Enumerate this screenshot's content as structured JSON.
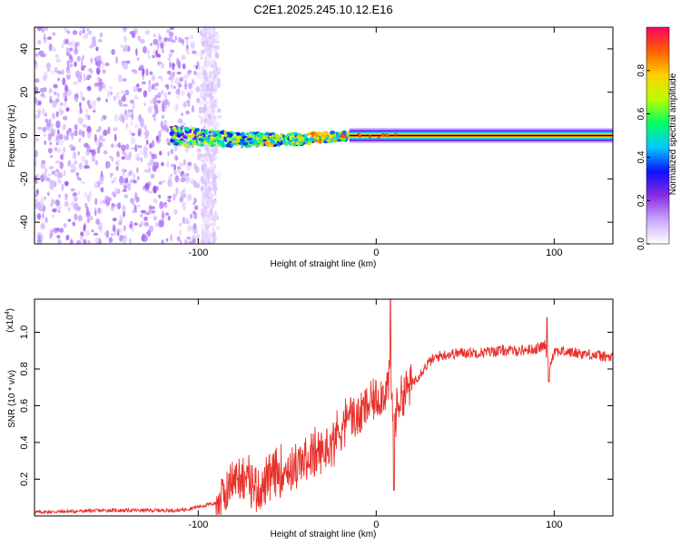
{
  "figure_title": "C2E1.2025.245.10.12.E16",
  "chart_data": [
    {
      "type": "heatmap",
      "title": "C2E1.2025.245.10.12.E16",
      "xlabel": "Height of straight line (km)",
      "ylabel": "Frequency (Hz)",
      "xlim": [
        -192,
        133
      ],
      "ylim": [
        -50,
        50
      ],
      "x_ticks": [
        -100,
        0,
        100
      ],
      "x_tick_labels": [
        "-100",
        "0",
        "100"
      ],
      "y_ticks": [
        -40,
        -20,
        0,
        20,
        40
      ],
      "y_tick_labels": [
        "-40",
        "-20",
        "0",
        "20",
        "40"
      ],
      "colorbar": {
        "label": "Normalized spectral amplitude",
        "range": [
          0,
          1
        ],
        "ticks": [
          0,
          0.2,
          0.4,
          0.6,
          0.8
        ],
        "tick_labels": [
          "0.0",
          "0.2",
          "0.4",
          "0.6",
          "0.8"
        ],
        "colormap": [
          "#ffffff",
          "#c9a6ff",
          "#8a2be2",
          "#1010ff",
          "#00c8ff",
          "#00ff66",
          "#b8ff00",
          "#ffd000",
          "#ff6000",
          "#ff0060"
        ]
      },
      "regions": [
        {
          "description": "noise",
          "x_range": [
            -192,
            -88
          ],
          "freq_range": [
            -50,
            50
          ],
          "amplitude": 0.1
        },
        {
          "description": "signal band",
          "x_range": [
            -115,
            -15
          ],
          "freq_center": 0,
          "freq_halfwidth": 4,
          "amplitude": 0.45
        },
        {
          "description": "carrier line",
          "x_range": [
            -15,
            133
          ],
          "freq_center": 0,
          "freq_halfwidth": 1,
          "amplitude": 0.95
        }
      ]
    },
    {
      "type": "line",
      "title": "",
      "xlabel": "Height of straight line (km)",
      "ylabel": "SNR (10 * v/v)",
      "scale_note_base": "(x10",
      "scale_note_exp": "4",
      "scale_note_close": ")",
      "xlim": [
        -192,
        133
      ],
      "ylim": [
        0,
        1.18
      ],
      "x_ticks": [
        -100,
        0,
        100
      ],
      "x_tick_labels": [
        "-100",
        "0",
        "100"
      ],
      "y_ticks": [
        0.2,
        0.4,
        0.6,
        0.8,
        1.0
      ],
      "y_tick_labels": [
        "0.2",
        "0.4",
        "0.6",
        "0.8",
        "1.0"
      ],
      "series": [
        {
          "name": "SNR",
          "color": "#e8302a",
          "x": [
            -192,
            -170,
            -150,
            -130,
            -110,
            -100,
            -95,
            -90,
            -85,
            -80,
            -75,
            -70,
            -65,
            -60,
            -55,
            -50,
            -45,
            -40,
            -35,
            -30,
            -25,
            -20,
            -15,
            -10,
            -5,
            0,
            5,
            8,
            10,
            12,
            15,
            20,
            25,
            30,
            35,
            40,
            50,
            60,
            70,
            80,
            90,
            95,
            97,
            100,
            110,
            120,
            133
          ],
          "values": [
            0.02,
            0.025,
            0.03,
            0.03,
            0.03,
            0.05,
            0.06,
            0.07,
            0.12,
            0.2,
            0.22,
            0.18,
            0.14,
            0.2,
            0.24,
            0.26,
            0.26,
            0.3,
            0.33,
            0.34,
            0.4,
            0.48,
            0.55,
            0.53,
            0.6,
            0.64,
            0.68,
            0.75,
            0.45,
            0.62,
            0.66,
            0.72,
            0.78,
            0.84,
            0.87,
            0.88,
            0.89,
            0.89,
            0.9,
            0.9,
            0.91,
            0.93,
            0.8,
            0.9,
            0.89,
            0.88,
            0.86
          ],
          "spikes": [
            {
              "x": 8,
              "value": 1.18
            },
            {
              "x": 10,
              "value": 0.14
            },
            {
              "x": 96,
              "value": 1.08
            },
            {
              "x": 97,
              "value": 0.73
            }
          ]
        }
      ]
    }
  ]
}
